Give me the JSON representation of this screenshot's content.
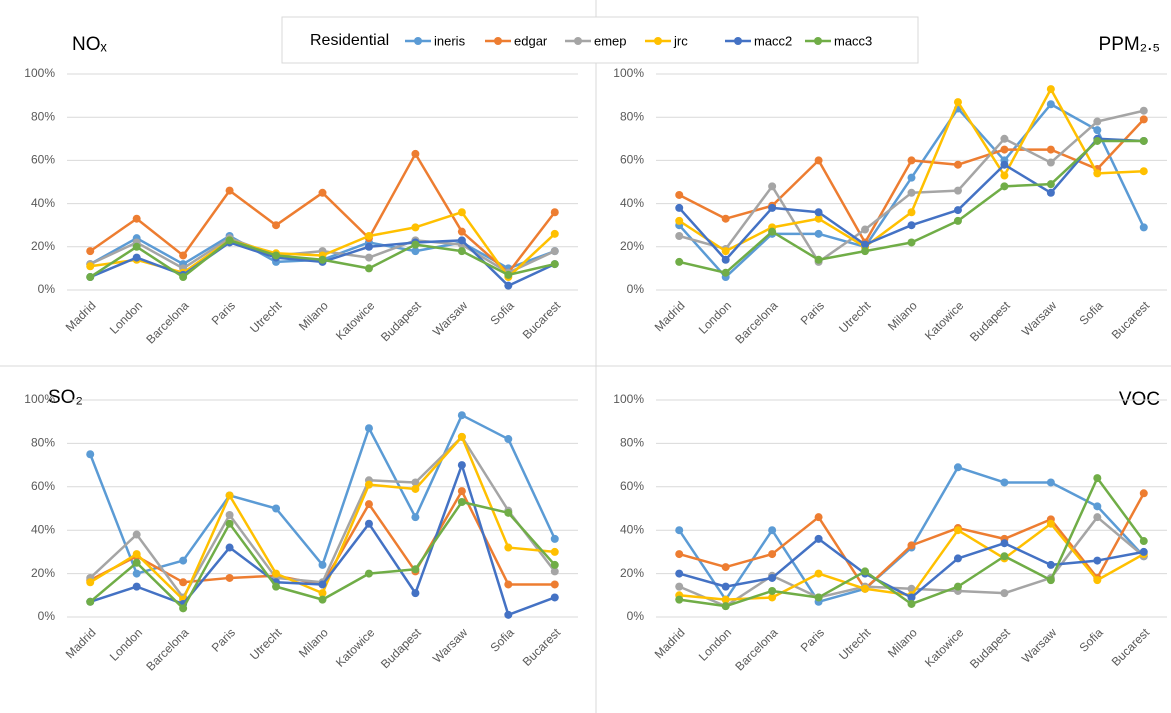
{
  "chart_data": [
    {
      "type": "line",
      "title": "NOₓ",
      "legend_title": "Residential",
      "categories": [
        "Madrid",
        "London",
        "Barcelona",
        "Paris",
        "Utrecht",
        "Milano",
        "Katowice",
        "Budapest",
        "Warsaw",
        "Sofia",
        "Bucarest"
      ],
      "ylim": [
        0,
        100
      ],
      "grid": true,
      "yticks": [
        {
          "value": 0,
          "label": "0%"
        },
        {
          "value": 20,
          "label": "20%"
        },
        {
          "value": 40,
          "label": "40%"
        },
        {
          "value": 60,
          "label": "60%"
        },
        {
          "value": 80,
          "label": "80%"
        },
        {
          "value": 100,
          "label": "100%"
        }
      ],
      "series": [
        {
          "name": "ineris",
          "color": "#5b9bd5",
          "values": [
            12,
            24,
            12,
            25,
            13,
            14,
            22,
            18,
            22,
            10,
            18
          ]
        },
        {
          "name": "edgar",
          "color": "#ed7d31",
          "values": [
            18,
            33,
            16,
            46,
            30,
            45,
            24,
            63,
            27,
            8,
            36
          ]
        },
        {
          "name": "emep",
          "color": "#a5a5a5",
          "values": [
            12,
            22,
            10,
            24,
            16,
            18,
            15,
            23,
            21,
            8,
            18
          ]
        },
        {
          "name": "jrc",
          "color": "#ffc000",
          "values": [
            11,
            14,
            8,
            23,
            17,
            16,
            25,
            29,
            36,
            6,
            26
          ]
        },
        {
          "name": "macc2",
          "color": "#4472c4",
          "values": [
            6,
            15,
            7,
            22,
            15,
            13,
            20,
            22,
            23,
            2,
            12
          ]
        },
        {
          "name": "macc3",
          "color": "#70ad47",
          "values": [
            6,
            20,
            6,
            23,
            16,
            14,
            10,
            21,
            18,
            7,
            12
          ]
        }
      ]
    },
    {
      "type": "line",
      "title": "PPM₂.₅",
      "categories": [
        "Madrid",
        "London",
        "Barcelona",
        "Paris",
        "Utrecht",
        "Milano",
        "Katowice",
        "Budapest",
        "Warsaw",
        "Sofia",
        "Bucarest"
      ],
      "ylim": [
        0,
        100
      ],
      "grid": true,
      "yticks": [
        {
          "value": 0,
          "label": "0%"
        },
        {
          "value": 20,
          "label": "20%"
        },
        {
          "value": 40,
          "label": "40%"
        },
        {
          "value": 60,
          "label": "60%"
        },
        {
          "value": 80,
          "label": "80%"
        },
        {
          "value": 100,
          "label": "100%"
        }
      ],
      "series": [
        {
          "name": "ineris",
          "color": "#5b9bd5",
          "values": [
            30,
            6,
            26,
            26,
            20,
            52,
            84,
            60,
            86,
            74,
            29
          ]
        },
        {
          "name": "edgar",
          "color": "#ed7d31",
          "values": [
            44,
            33,
            39,
            60,
            22,
            60,
            58,
            65,
            65,
            56,
            79
          ]
        },
        {
          "name": "emep",
          "color": "#a5a5a5",
          "values": [
            25,
            19,
            48,
            13,
            28,
            45,
            46,
            70,
            59,
            78,
            83
          ]
        },
        {
          "name": "jrc",
          "color": "#ffc000",
          "values": [
            32,
            18,
            29,
            33,
            20,
            36,
            87,
            53,
            93,
            54,
            55
          ]
        },
        {
          "name": "macc2",
          "color": "#4472c4",
          "values": [
            38,
            14,
            38,
            36,
            21,
            30,
            37,
            58,
            45,
            70,
            69
          ]
        },
        {
          "name": "macc3",
          "color": "#70ad47",
          "values": [
            13,
            8,
            27,
            14,
            18,
            22,
            32,
            48,
            49,
            69,
            69
          ]
        }
      ]
    },
    {
      "type": "line",
      "title": "SO₂",
      "categories": [
        "Madrid",
        "London",
        "Barcelona",
        "Paris",
        "Utrecht",
        "Milano",
        "Katowice",
        "Budapest",
        "Warsaw",
        "Sofia",
        "Bucarest"
      ],
      "ylim": [
        0,
        100
      ],
      "grid": true,
      "yticks": [
        {
          "value": 0,
          "label": "0%"
        },
        {
          "value": 20,
          "label": "20%"
        },
        {
          "value": 40,
          "label": "40%"
        },
        {
          "value": 60,
          "label": "60%"
        },
        {
          "value": 80,
          "label": "80%"
        },
        {
          "value": 100,
          "label": "100%"
        }
      ],
      "series": [
        {
          "name": "ineris",
          "color": "#5b9bd5",
          "values": [
            75,
            20,
            26,
            56,
            50,
            24,
            87,
            46,
            93,
            82,
            36
          ]
        },
        {
          "name": "edgar",
          "color": "#ed7d31",
          "values": [
            17,
            28,
            16,
            18,
            19,
            15,
            52,
            21,
            58,
            15,
            15
          ]
        },
        {
          "name": "emep",
          "color": "#a5a5a5",
          "values": [
            18,
            38,
            9,
            47,
            18,
            16,
            63,
            62,
            83,
            49,
            21
          ]
        },
        {
          "name": "jrc",
          "color": "#ffc000",
          "values": [
            16,
            29,
            8,
            56,
            20,
            11,
            61,
            59,
            83,
            32,
            30
          ]
        },
        {
          "name": "macc2",
          "color": "#4472c4",
          "values": [
            7,
            14,
            6,
            32,
            16,
            15,
            43,
            11,
            70,
            1,
            9
          ]
        },
        {
          "name": "macc3",
          "color": "#70ad47",
          "values": [
            7,
            25,
            4,
            43,
            14,
            8,
            20,
            22,
            53,
            48,
            24
          ]
        }
      ]
    },
    {
      "type": "line",
      "title": "VOC",
      "categories": [
        "Madrid",
        "London",
        "Barcelona",
        "Paris",
        "Utrecht",
        "Milano",
        "Katowice",
        "Budapest",
        "Warsaw",
        "Sofia",
        "Bucarest"
      ],
      "ylim": [
        0,
        100
      ],
      "grid": true,
      "yticks": [
        {
          "value": 0,
          "label": "0%"
        },
        {
          "value": 20,
          "label": "20%"
        },
        {
          "value": 40,
          "label": "40%"
        },
        {
          "value": 60,
          "label": "60%"
        },
        {
          "value": 80,
          "label": "80%"
        },
        {
          "value": 100,
          "label": "100%"
        }
      ],
      "series": [
        {
          "name": "ineris",
          "color": "#5b9bd5",
          "values": [
            40,
            8,
            40,
            7,
            13,
            32,
            69,
            62,
            62,
            51,
            28
          ]
        },
        {
          "name": "edgar",
          "color": "#ed7d31",
          "values": [
            29,
            23,
            29,
            46,
            13,
            33,
            41,
            36,
            45,
            18,
            57
          ]
        },
        {
          "name": "emep",
          "color": "#a5a5a5",
          "values": [
            14,
            5,
            19,
            9,
            14,
            13,
            12,
            11,
            18,
            46,
            28
          ]
        },
        {
          "name": "jrc",
          "color": "#ffc000",
          "values": [
            10,
            8,
            9,
            20,
            13,
            10,
            40,
            27,
            43,
            17,
            29
          ]
        },
        {
          "name": "macc2",
          "color": "#4472c4",
          "values": [
            20,
            14,
            18,
            36,
            20,
            9,
            27,
            34,
            24,
            26,
            30
          ]
        },
        {
          "name": "macc3",
          "color": "#70ad47",
          "values": [
            8,
            5,
            12,
            9,
            21,
            6,
            14,
            28,
            17,
            64,
            35
          ]
        }
      ]
    }
  ]
}
